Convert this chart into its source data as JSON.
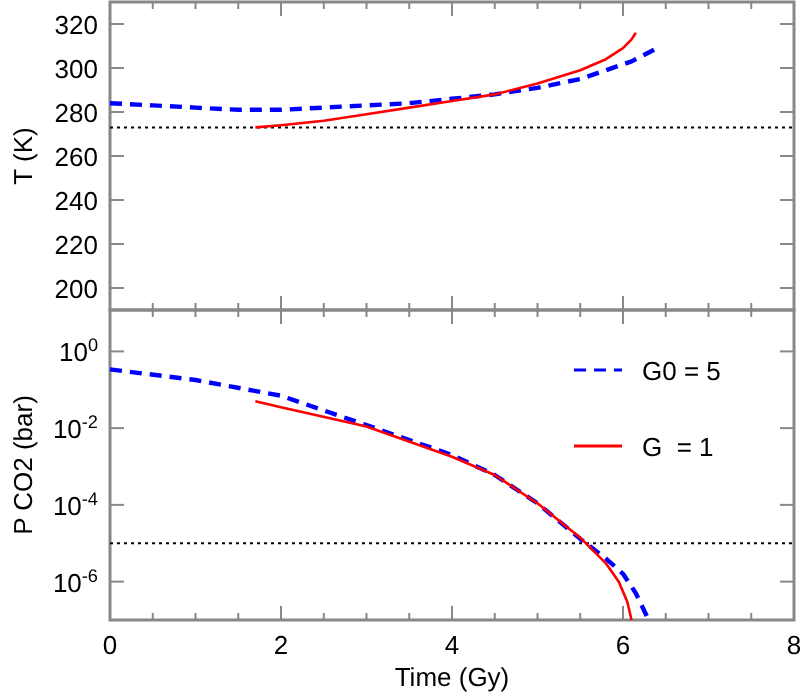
{
  "chart_data": [
    {
      "type": "line",
      "ylabel": "T (K)",
      "xlim": [
        0,
        8
      ],
      "xticks": [
        0,
        2,
        4,
        6,
        8
      ],
      "ylim": [
        190,
        330
      ],
      "yticks": [
        200,
        220,
        240,
        260,
        280,
        300,
        320
      ],
      "tick_labels": "y",
      "grid": false,
      "legend": false,
      "ref_lines": [
        {
          "axis": "y",
          "value": 273,
          "line_style": "dotted",
          "color": "#000000"
        }
      ],
      "series": [
        {
          "color": "#0000ff",
          "line_style": "dashed",
          "x": [
            0,
            0.5,
            1,
            1.5,
            2,
            2.5,
            3,
            3.5,
            4,
            4.5,
            5,
            5.5,
            5.8,
            6.1,
            6.4
          ],
          "values": [
            284,
            283,
            282,
            281,
            281,
            282,
            283,
            284,
            286,
            288,
            291,
            295,
            299,
            303,
            309
          ]
        },
        {
          "color": "#ff0000",
          "line_style": "solid",
          "x": [
            1.7,
            2,
            2.5,
            3,
            3.5,
            4,
            4.5,
            5,
            5.5,
            5.8,
            6.0,
            6.1,
            6.15
          ],
          "values": [
            273,
            274,
            276,
            279,
            282,
            285,
            288,
            293,
            299,
            304,
            309,
            313,
            316
          ]
        }
      ]
    },
    {
      "type": "line",
      "xlabel": "Time (Gy)",
      "ylabel": "P CO2 (bar)",
      "log": "y",
      "xlim": [
        0,
        8
      ],
      "xticks": [
        0,
        2,
        4,
        6,
        8
      ],
      "ylim": [
        1e-07,
        12
      ],
      "yticks": [
        {
          "value": 1,
          "label": "10$^{0}$"
        },
        {
          "value": 0.01,
          "label": "10$^{-2}$"
        },
        {
          "value": 0.0001,
          "label": "10$^{-4}$"
        },
        {
          "value": 1e-06,
          "label": "10$^{-6}$"
        }
      ],
      "grid": false,
      "legend": "top right",
      "ref_lines": [
        {
          "axis": "y",
          "value": 1e-05,
          "line_style": "dotted",
          "color": "#000000"
        }
      ],
      "series": [
        {
          "name": "G0 = 5",
          "color": "#0000ff",
          "line_style": "dashed",
          "x": [
            0,
            1,
            2,
            3,
            4,
            4.5,
            5,
            5.5,
            5.8,
            6,
            6.15,
            6.3
          ],
          "values": [
            0.34,
            0.18,
            0.07,
            0.012,
            0.002,
            0.0006,
            0.00011,
            1.3e-05,
            4e-06,
            1.6e-06,
            5e-07,
            1e-07
          ]
        },
        {
          "name": "G  = 1",
          "color": "#ff0000",
          "line_style": "solid",
          "x": [
            1.7,
            2,
            3,
            4,
            4.5,
            5,
            5.5,
            5.8,
            5.95,
            6.05,
            6.1
          ],
          "values": [
            0.05,
            0.035,
            0.011,
            0.0018,
            0.0006,
            0.00011,
            1.4e-05,
            3e-06,
            1e-06,
            3e-07,
            1e-07
          ]
        }
      ]
    }
  ]
}
